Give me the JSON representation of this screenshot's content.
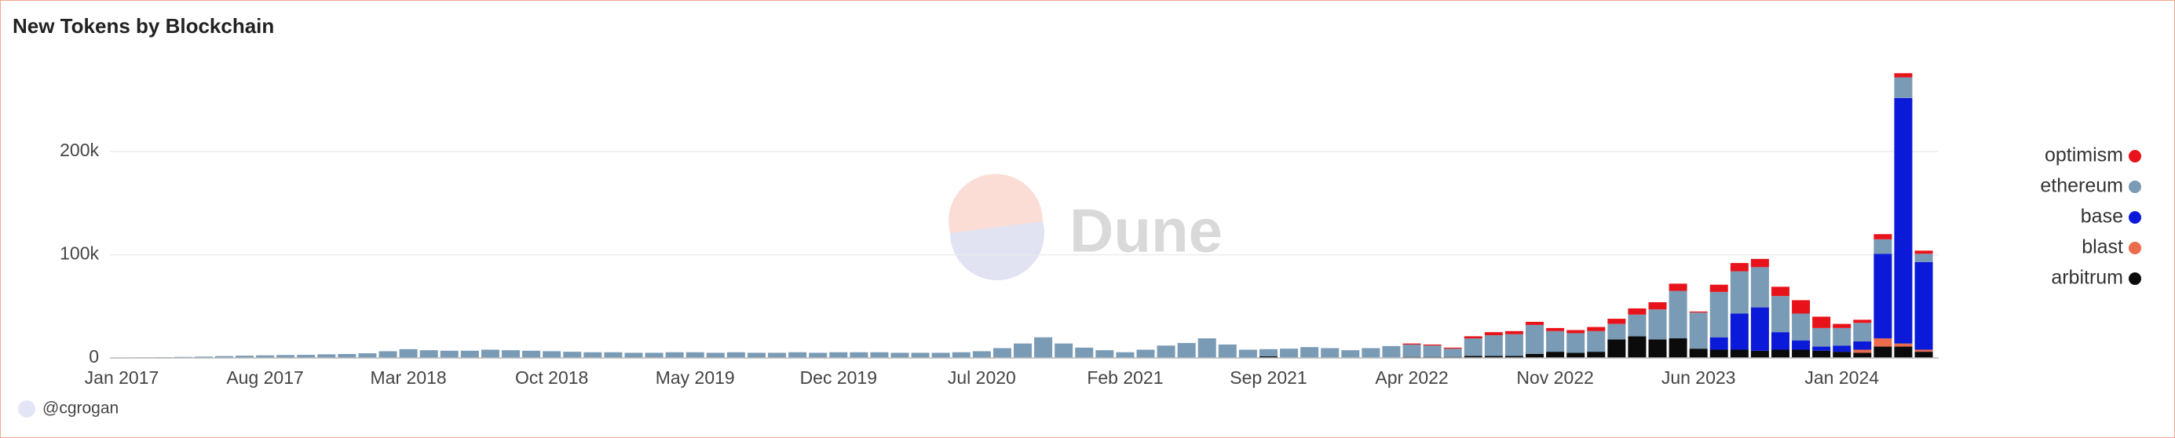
{
  "chart_data": {
    "type": "stacked-bar",
    "title": "New Tokens by Blockchain",
    "watermark": "Dune",
    "credit": "@cgrogan",
    "categories": [
      "Jan 2017",
      null,
      null,
      null,
      null,
      null,
      null,
      "Aug 2017",
      null,
      null,
      null,
      null,
      null,
      null,
      "Mar 2018",
      null,
      null,
      null,
      null,
      null,
      null,
      "Oct 2018",
      null,
      null,
      null,
      null,
      null,
      null,
      "May 2019",
      null,
      null,
      null,
      null,
      null,
      null,
      "Dec 2019",
      null,
      null,
      null,
      null,
      null,
      null,
      "Jul 2020",
      null,
      null,
      null,
      null,
      null,
      null,
      "Feb 2021",
      null,
      null,
      null,
      null,
      null,
      null,
      "Sep 2021",
      null,
      null,
      null,
      null,
      null,
      null,
      "Apr 2022",
      null,
      null,
      null,
      null,
      null,
      null,
      "Nov 2022",
      null,
      null,
      null,
      null,
      null,
      null,
      "Jun 2023",
      null,
      null,
      null,
      null,
      null,
      null,
      "Jan 2024",
      null,
      null,
      null,
      null
    ],
    "series": [
      {
        "name": "optimism",
        "color": "#e8131a",
        "values": [
          0,
          0,
          0,
          0,
          0,
          0,
          0,
          0,
          0,
          0,
          0,
          0,
          0,
          0,
          0,
          0,
          0,
          0,
          0,
          0,
          0,
          0,
          0,
          0,
          0,
          0,
          0,
          0,
          0,
          0,
          0,
          0,
          0,
          0,
          0,
          0,
          0,
          0,
          0,
          0,
          0,
          0,
          0,
          0,
          0,
          0,
          0,
          0,
          0,
          0,
          0,
          0,
          0,
          0,
          0,
          0,
          0,
          0,
          0,
          0,
          0,
          0,
          0,
          1000,
          1000,
          1000,
          2000,
          3000,
          3000,
          3000,
          3000,
          3000,
          4000,
          5000,
          6000,
          7000,
          7000,
          1000,
          7000,
          8000,
          8000,
          9000,
          13000,
          11000,
          4000,
          3000,
          5000,
          4000,
          3000
        ]
      },
      {
        "name": "ethereum",
        "color": "#7a9bb5",
        "values": [
          400,
          500,
          700,
          1000,
          1300,
          1800,
          2200,
          2500,
          2800,
          3000,
          3500,
          3800,
          4500,
          6500,
          8500,
          7500,
          7000,
          7000,
          8000,
          7500,
          7000,
          6500,
          6000,
          5500,
          5500,
          5000,
          5000,
          5500,
          5500,
          5000,
          5500,
          5000,
          5000,
          5500,
          5000,
          5500,
          5500,
          5500,
          5000,
          5000,
          5000,
          5500,
          6500,
          9500,
          14000,
          20000,
          14000,
          10000,
          7500,
          5500,
          8000,
          12000,
          14500,
          19000,
          13000,
          8000,
          7000,
          8500,
          10000,
          9000,
          7000,
          9000,
          11000,
          12000,
          11000,
          8000,
          17000,
          20000,
          21000,
          28000,
          20000,
          19000,
          20000,
          15000,
          21000,
          29000,
          46000,
          35000,
          44000,
          41000,
          39000,
          35000,
          26000,
          18000,
          17000,
          18000,
          14000,
          20000,
          8000
        ]
      },
      {
        "name": "base",
        "color": "#0a1ad8",
        "values": [
          0,
          0,
          0,
          0,
          0,
          0,
          0,
          0,
          0,
          0,
          0,
          0,
          0,
          0,
          0,
          0,
          0,
          0,
          0,
          0,
          0,
          0,
          0,
          0,
          0,
          0,
          0,
          0,
          0,
          0,
          0,
          0,
          0,
          0,
          0,
          0,
          0,
          0,
          0,
          0,
          0,
          0,
          0,
          0,
          0,
          0,
          0,
          0,
          0,
          0,
          0,
          0,
          0,
          0,
          0,
          0,
          0,
          0,
          0,
          0,
          0,
          0,
          0,
          0,
          0,
          0,
          0,
          0,
          0,
          0,
          0,
          0,
          0,
          0,
          0,
          0,
          0,
          0,
          12000,
          35000,
          42000,
          17000,
          9000,
          4000,
          6000,
          8000,
          82000,
          238000,
          85000
        ]
      },
      {
        "name": "blast",
        "color": "#ec6a4e",
        "values": [
          0,
          0,
          0,
          0,
          0,
          0,
          0,
          0,
          0,
          0,
          0,
          0,
          0,
          0,
          0,
          0,
          0,
          0,
          0,
          0,
          0,
          0,
          0,
          0,
          0,
          0,
          0,
          0,
          0,
          0,
          0,
          0,
          0,
          0,
          0,
          0,
          0,
          0,
          0,
          0,
          0,
          0,
          0,
          0,
          0,
          0,
          0,
          0,
          0,
          0,
          0,
          0,
          0,
          0,
          0,
          0,
          0,
          0,
          0,
          0,
          0,
          0,
          0,
          0,
          0,
          0,
          0,
          0,
          0,
          0,
          0,
          0,
          0,
          0,
          0,
          0,
          0,
          0,
          0,
          0,
          0,
          0,
          0,
          0,
          0,
          3000,
          8000,
          3000,
          2000
        ]
      },
      {
        "name": "arbitrum",
        "color": "#0b0b0b",
        "values": [
          0,
          0,
          0,
          0,
          0,
          0,
          0,
          0,
          0,
          0,
          0,
          0,
          0,
          0,
          0,
          0,
          0,
          0,
          0,
          0,
          0,
          0,
          0,
          0,
          0,
          0,
          0,
          0,
          0,
          0,
          0,
          0,
          0,
          0,
          0,
          0,
          0,
          0,
          0,
          0,
          0,
          0,
          0,
          0,
          0,
          0,
          0,
          0,
          0,
          0,
          0,
          0,
          0,
          0,
          0,
          0,
          1500,
          500,
          500,
          500,
          500,
          500,
          500,
          1000,
          1000,
          1000,
          2000,
          2000,
          2000,
          4000,
          6000,
          5000,
          6000,
          18000,
          21000,
          18000,
          19000,
          9000,
          8000,
          8000,
          7000,
          8000,
          8000,
          7000,
          6000,
          5000,
          11000,
          11000,
          6000
        ]
      }
    ],
    "ylim": [
      0,
      280000
    ],
    "yticks": [
      0,
      {
        "value": 100000,
        "label": "100k"
      },
      {
        "value": 200000,
        "label": "200k"
      }
    ],
    "grid": true,
    "legend": "right"
  }
}
